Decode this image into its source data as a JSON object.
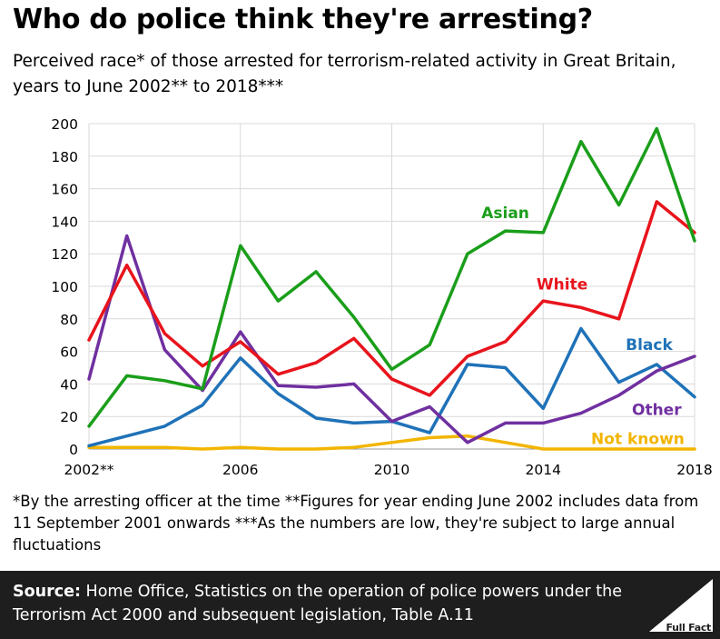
{
  "header": {
    "title": "Who do police think they're arresting?",
    "subtitle": "Perceived race* of those arrested for terrorism-related activity in Great Britain, years to June 2002** to 2018***"
  },
  "footnote": "*By the arresting officer at the time **Figures for year ending June 2002 includes data from 11 September 2001 onwards ***As the numbers are low, they're subject to large annual fluctuations",
  "source": {
    "label": "Source:",
    "text": " Home Office, Statistics on the operation of police powers under the Terrorism Act 2000 and subsequent legislation, Table A.11"
  },
  "logo": {
    "text": "Full Fact"
  },
  "chart_data": {
    "type": "line",
    "title": "Who do police think they're arresting?",
    "x": [
      2002,
      2003,
      2004,
      2005,
      2006,
      2007,
      2008,
      2009,
      2010,
      2011,
      2012,
      2013,
      2014,
      2015,
      2016,
      2017,
      2018
    ],
    "xticks": [
      2002,
      2006,
      2010,
      2014,
      2018
    ],
    "xtick_labels": [
      "2002**",
      "2006",
      "2010",
      "2014",
      "2018"
    ],
    "ylim": [
      0,
      200
    ],
    "yticks": [
      0,
      20,
      40,
      60,
      80,
      100,
      120,
      140,
      160,
      180,
      200
    ],
    "grid": true,
    "series": [
      {
        "name": "Asian",
        "color": "#1a9e1a",
        "values": [
          14,
          45,
          42,
          37,
          125,
          91,
          109,
          81,
          49,
          64,
          120,
          134,
          133,
          189,
          150,
          197,
          128
        ]
      },
      {
        "name": "White",
        "color": "#e8141c",
        "values": [
          67,
          113,
          71,
          51,
          66,
          46,
          53,
          68,
          43,
          33,
          57,
          66,
          91,
          87,
          80,
          152,
          133
        ]
      },
      {
        "name": "Black",
        "color": "#1f72b8",
        "values": [
          2,
          8,
          14,
          27,
          56,
          34,
          19,
          16,
          17,
          10,
          52,
          50,
          25,
          74,
          41,
          52,
          32
        ]
      },
      {
        "name": "Other",
        "color": "#7030a0",
        "values": [
          43,
          131,
          61,
          36,
          72,
          39,
          38,
          40,
          17,
          26,
          4,
          16,
          16,
          22,
          33,
          48,
          57
        ]
      },
      {
        "name": "Not known",
        "color": "#f2b500",
        "values": [
          1,
          1,
          1,
          0,
          1,
          0,
          0,
          1,
          4,
          7,
          8,
          4,
          0,
          0,
          0,
          0,
          0
        ]
      }
    ]
  }
}
